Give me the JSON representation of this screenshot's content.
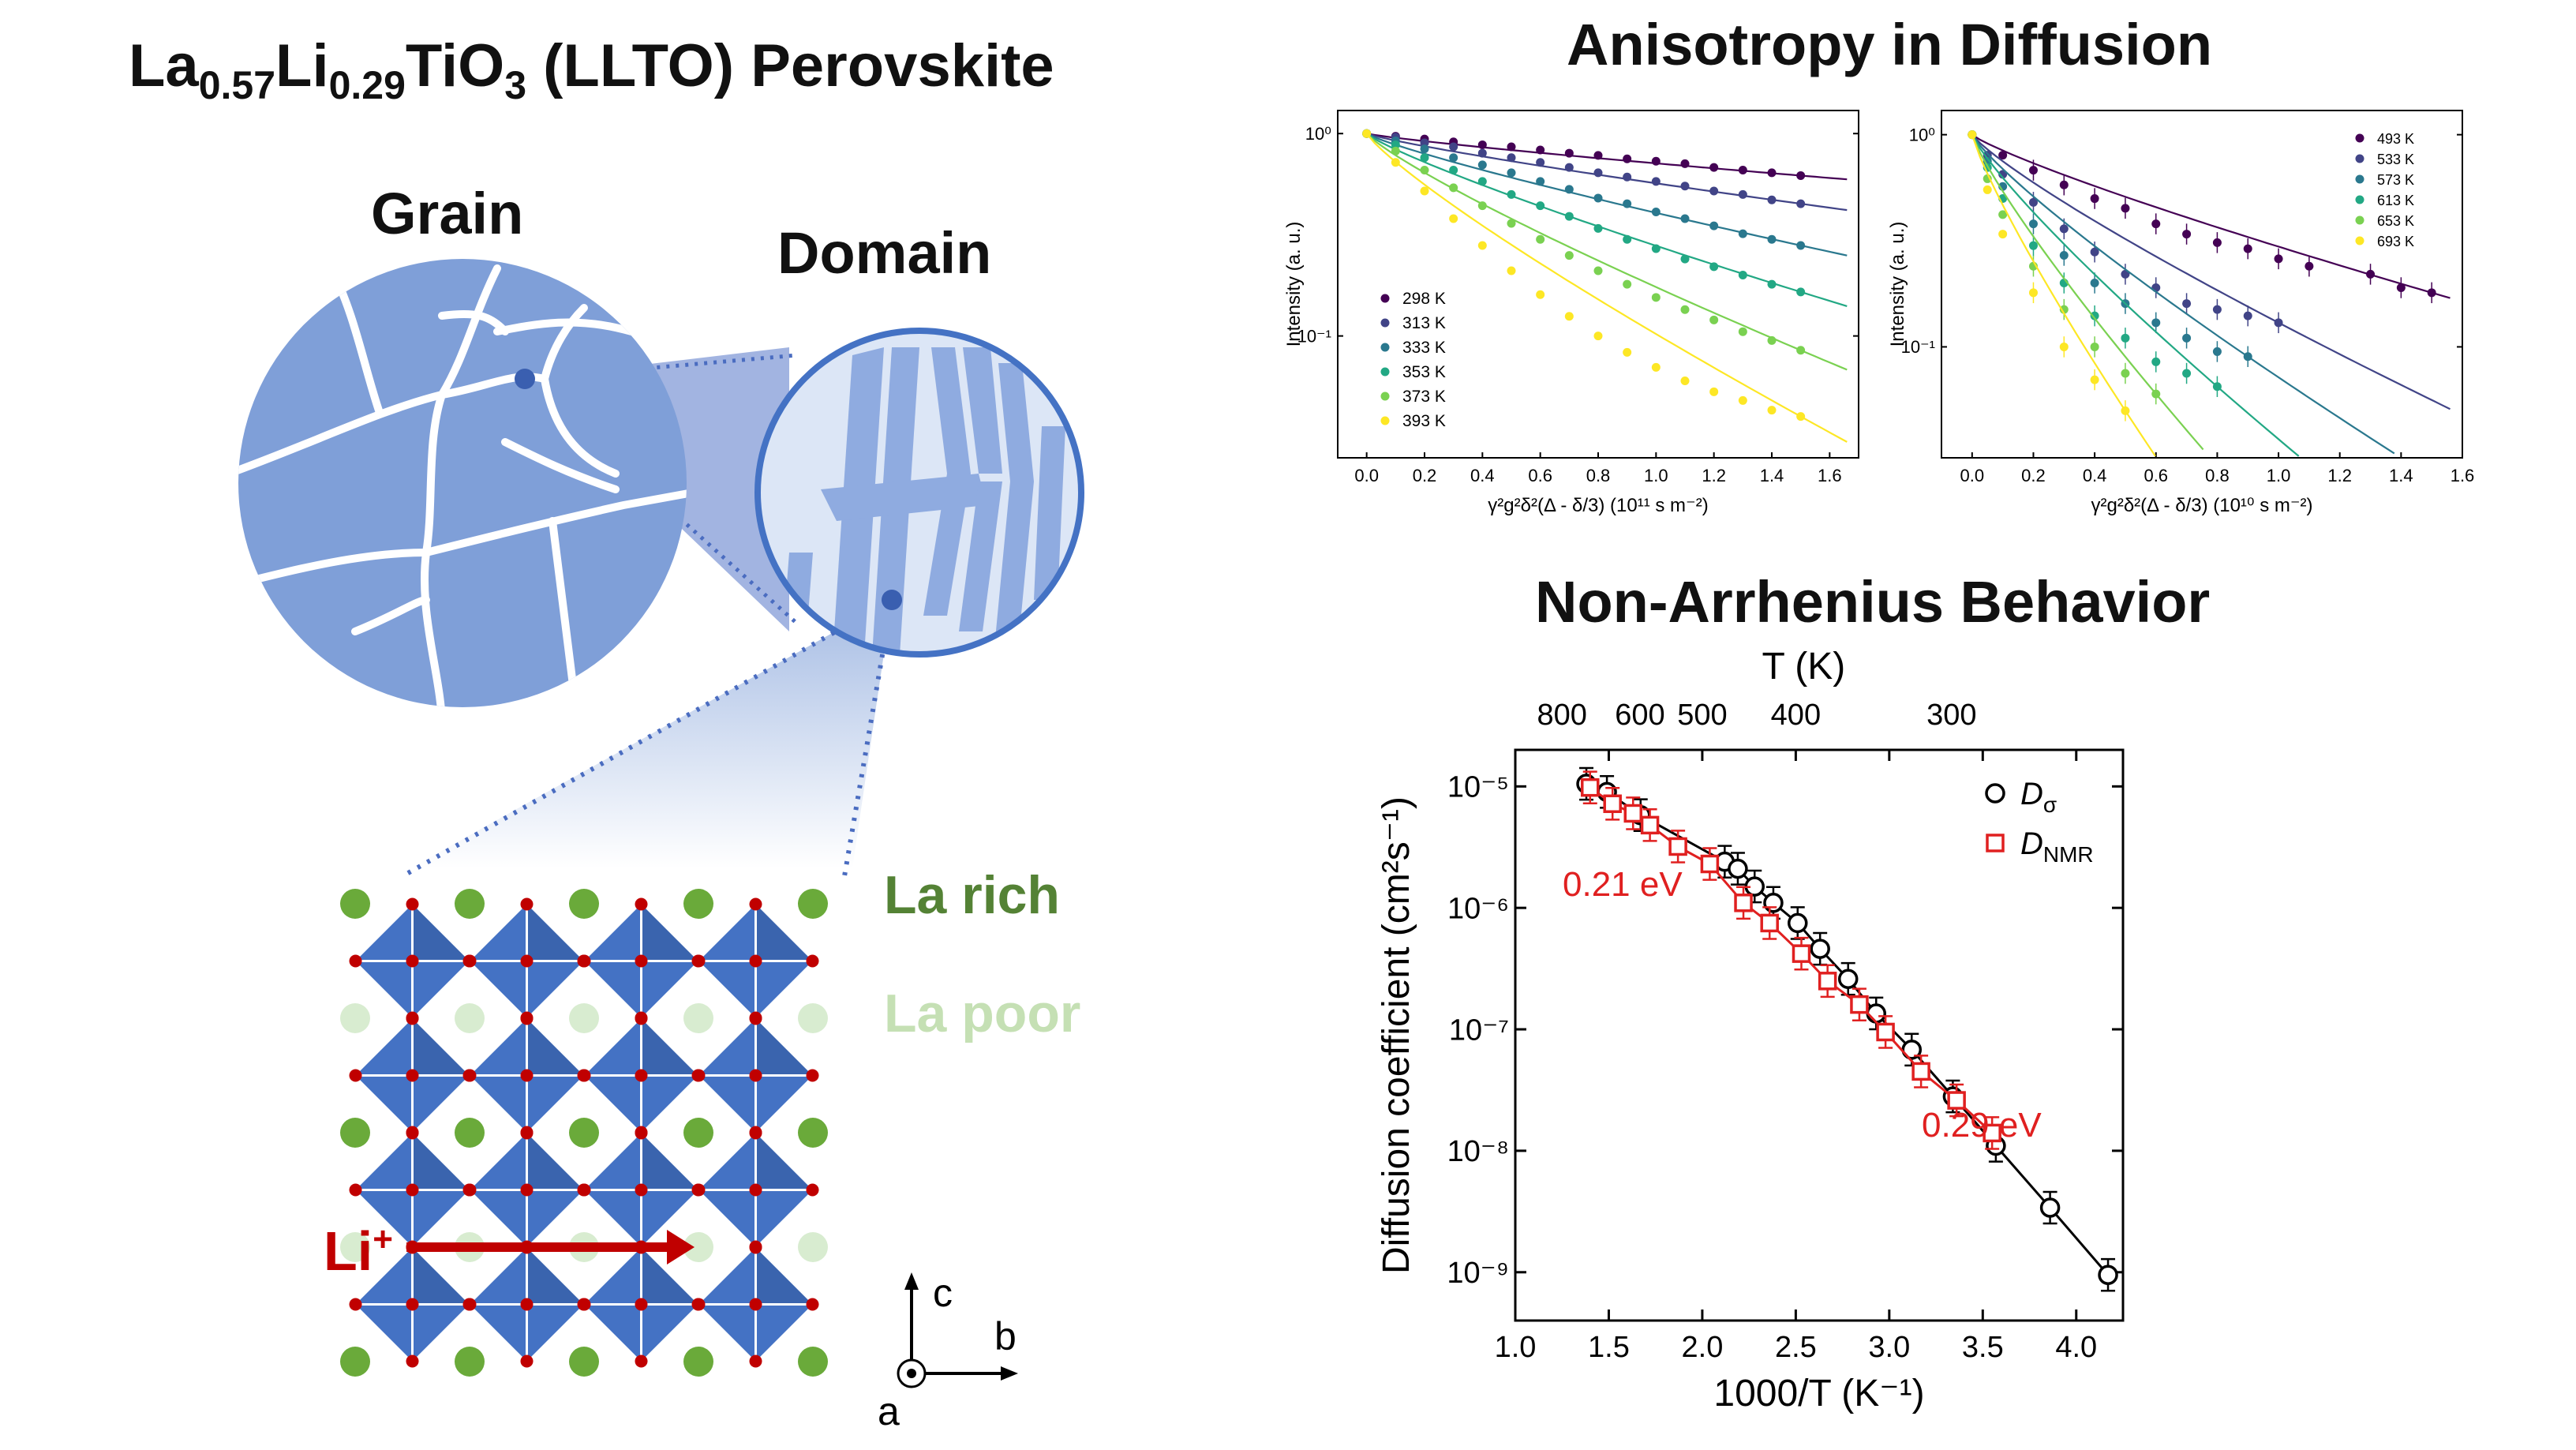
{
  "left": {
    "title": {
      "main1": "La",
      "sub1": "0.57",
      "main2": "Li",
      "sub2": "0.29",
      "main3": "TiO",
      "sub3": "3",
      "main4": " (LLTO) Perovskite"
    },
    "grain_label": "Grain",
    "domain_label": "Domain",
    "la_rich_label": "La rich",
    "la_poor_label": "La poor",
    "li_label": "Li",
    "li_sup": "+",
    "axis_c": "c",
    "axis_b": "b",
    "axis_a": "a",
    "colors": {
      "grain": "#7f9fd8",
      "grain_lines": "#ffffff",
      "octahedron": "#4472c4",
      "la_green": "#6aaa3a",
      "la_poor": "#d8ecd0",
      "arrow": "#c00000",
      "la_rich_text": "#548235",
      "la_poor_text": "#c5e0b4"
    }
  },
  "top_title": "Anisotropy in Diffusion",
  "bottom_title": "Non-Arrhenius Behavior",
  "chart_data": [
    {
      "type": "scatter",
      "yscale": "log",
      "xlabel": "γ²g²δ²(Δ - δ/3) (10¹¹ s m⁻²)",
      "ylabel": "Intensity (a. u.)",
      "xlim": [
        -0.1,
        1.7
      ],
      "ylim": [
        0.025,
        1.3
      ],
      "xticks": [
        "0.0",
        "0.2",
        "0.4",
        "0.6",
        "0.8",
        "1.0",
        "1.2",
        "1.4",
        "1.6"
      ],
      "yticks": [
        {
          "v": 1,
          "t": "10⁰"
        },
        {
          "v": 0.1,
          "t": "10⁻¹"
        }
      ],
      "legend_pos": "bottom-left",
      "series": [
        {
          "name": "298 K",
          "color": "#440154",
          "values": [
            [
              0,
              1
            ],
            [
              0.1,
              0.97
            ],
            [
              0.2,
              0.94
            ],
            [
              0.3,
              0.91
            ],
            [
              0.4,
              0.88
            ],
            [
              0.5,
              0.86
            ],
            [
              0.6,
              0.83
            ],
            [
              0.7,
              0.8
            ],
            [
              0.8,
              0.78
            ],
            [
              0.9,
              0.75
            ],
            [
              1.0,
              0.73
            ],
            [
              1.1,
              0.71
            ],
            [
              1.2,
              0.68
            ],
            [
              1.3,
              0.66
            ],
            [
              1.4,
              0.64
            ],
            [
              1.5,
              0.62
            ]
          ]
        },
        {
          "name": "313 K",
          "color": "#414487",
          "values": [
            [
              0,
              1
            ],
            [
              0.1,
              0.96
            ],
            [
              0.2,
              0.9
            ],
            [
              0.3,
              0.86
            ],
            [
              0.4,
              0.8
            ],
            [
              0.5,
              0.76
            ],
            [
              0.6,
              0.72
            ],
            [
              0.7,
              0.68
            ],
            [
              0.8,
              0.64
            ],
            [
              0.9,
              0.61
            ],
            [
              1.0,
              0.58
            ],
            [
              1.1,
              0.55
            ],
            [
              1.2,
              0.52
            ],
            [
              1.3,
              0.5
            ],
            [
              1.4,
              0.47
            ],
            [
              1.5,
              0.45
            ]
          ]
        },
        {
          "name": "333 K",
          "color": "#2a788e",
          "values": [
            [
              0,
              1
            ],
            [
              0.1,
              0.92
            ],
            [
              0.2,
              0.84
            ],
            [
              0.3,
              0.76
            ],
            [
              0.4,
              0.7
            ],
            [
              0.5,
              0.64
            ],
            [
              0.6,
              0.58
            ],
            [
              0.7,
              0.53
            ],
            [
              0.8,
              0.48
            ],
            [
              0.9,
              0.45
            ],
            [
              1.0,
              0.41
            ],
            [
              1.1,
              0.38
            ],
            [
              1.2,
              0.35
            ],
            [
              1.3,
              0.32
            ],
            [
              1.4,
              0.3
            ],
            [
              1.5,
              0.28
            ]
          ]
        },
        {
          "name": "353 K",
          "color": "#22a884",
          "values": [
            [
              0,
              1
            ],
            [
              0.1,
              0.88
            ],
            [
              0.2,
              0.76
            ],
            [
              0.3,
              0.66
            ],
            [
              0.4,
              0.58
            ],
            [
              0.5,
              0.5
            ],
            [
              0.6,
              0.44
            ],
            [
              0.7,
              0.39
            ],
            [
              0.8,
              0.34
            ],
            [
              0.9,
              0.3
            ],
            [
              1.0,
              0.27
            ],
            [
              1.1,
              0.24
            ],
            [
              1.2,
              0.22
            ],
            [
              1.3,
              0.2
            ],
            [
              1.4,
              0.18
            ],
            [
              1.5,
              0.165
            ]
          ]
        },
        {
          "name": "373 K",
          "color": "#7ad151",
          "values": [
            [
              0,
              1
            ],
            [
              0.1,
              0.82
            ],
            [
              0.2,
              0.66
            ],
            [
              0.3,
              0.54
            ],
            [
              0.4,
              0.44
            ],
            [
              0.5,
              0.36
            ],
            [
              0.6,
              0.3
            ],
            [
              0.7,
              0.25
            ],
            [
              0.8,
              0.21
            ],
            [
              0.9,
              0.18
            ],
            [
              1.0,
              0.155
            ],
            [
              1.1,
              0.135
            ],
            [
              1.2,
              0.12
            ],
            [
              1.3,
              0.105
            ],
            [
              1.4,
              0.095
            ],
            [
              1.5,
              0.085
            ]
          ]
        },
        {
          "name": "393 K",
          "color": "#fde725",
          "values": [
            [
              0,
              1
            ],
            [
              0.1,
              0.72
            ],
            [
              0.2,
              0.52
            ],
            [
              0.3,
              0.38
            ],
            [
              0.4,
              0.28
            ],
            [
              0.5,
              0.21
            ],
            [
              0.6,
              0.16
            ],
            [
              0.7,
              0.125
            ],
            [
              0.8,
              0.1
            ],
            [
              0.9,
              0.083
            ],
            [
              1.0,
              0.07
            ],
            [
              1.1,
              0.06
            ],
            [
              1.2,
              0.053
            ],
            [
              1.3,
              0.048
            ],
            [
              1.4,
              0.043
            ],
            [
              1.5,
              0.04
            ]
          ]
        }
      ]
    },
    {
      "type": "scatter",
      "yscale": "log",
      "xlabel": "γ²g²δ²(Δ - δ/3) (10¹⁰ s m⁻²)",
      "ylabel": "Intensity (a. u.)",
      "xlim": [
        -0.1,
        1.6
      ],
      "ylim": [
        0.03,
        1.3
      ],
      "xticks": [
        "0.0",
        "0.2",
        "0.4",
        "0.6",
        "0.8",
        "1.0",
        "1.2",
        "1.4",
        "1.6"
      ],
      "yticks": [
        {
          "v": 1,
          "t": "10⁰"
        },
        {
          "v": 0.1,
          "t": "10⁻¹"
        }
      ],
      "legend_pos": "top-right",
      "series": [
        {
          "name": "493 K",
          "color": "#440154",
          "values": [
            [
              0,
              1
            ],
            [
              0.1,
              0.8
            ],
            [
              0.2,
              0.68
            ],
            [
              0.3,
              0.58
            ],
            [
              0.4,
              0.5
            ],
            [
              0.5,
              0.45
            ],
            [
              0.6,
              0.38
            ],
            [
              0.7,
              0.34
            ],
            [
              0.8,
              0.31
            ],
            [
              0.9,
              0.29
            ],
            [
              1.0,
              0.26
            ],
            [
              1.1,
              0.24
            ],
            [
              1.3,
              0.22
            ],
            [
              1.4,
              0.19
            ],
            [
              1.5,
              0.18
            ]
          ]
        },
        {
          "name": "533 K",
          "color": "#414487",
          "values": [
            [
              0,
              1
            ],
            [
              0.05,
              0.8
            ],
            [
              0.1,
              0.65
            ],
            [
              0.2,
              0.48
            ],
            [
              0.3,
              0.36
            ],
            [
              0.4,
              0.28
            ],
            [
              0.5,
              0.22
            ],
            [
              0.6,
              0.19
            ],
            [
              0.7,
              0.16
            ],
            [
              0.8,
              0.15
            ],
            [
              0.9,
              0.14
            ],
            [
              1.0,
              0.13
            ]
          ]
        },
        {
          "name": "573 K",
          "color": "#2a788e",
          "values": [
            [
              0,
              1
            ],
            [
              0.05,
              0.75
            ],
            [
              0.1,
              0.57
            ],
            [
              0.2,
              0.38
            ],
            [
              0.3,
              0.27
            ],
            [
              0.4,
              0.2
            ],
            [
              0.5,
              0.16
            ],
            [
              0.6,
              0.13
            ],
            [
              0.7,
              0.11
            ],
            [
              0.8,
              0.095
            ],
            [
              0.9,
              0.09
            ]
          ]
        },
        {
          "name": "613 K",
          "color": "#22a884",
          "values": [
            [
              0,
              1
            ],
            [
              0.05,
              0.7
            ],
            [
              0.1,
              0.5
            ],
            [
              0.2,
              0.3
            ],
            [
              0.3,
              0.2
            ],
            [
              0.4,
              0.14
            ],
            [
              0.5,
              0.11
            ],
            [
              0.6,
              0.085
            ],
            [
              0.7,
              0.075
            ],
            [
              0.8,
              0.065
            ]
          ]
        },
        {
          "name": "653 K",
          "color": "#7ad151",
          "values": [
            [
              0,
              1
            ],
            [
              0.05,
              0.62
            ],
            [
              0.1,
              0.42
            ],
            [
              0.2,
              0.24
            ],
            [
              0.3,
              0.15
            ],
            [
              0.4,
              0.1
            ],
            [
              0.5,
              0.075
            ],
            [
              0.6,
              0.06
            ]
          ]
        },
        {
          "name": "693 K",
          "color": "#fde725",
          "values": [
            [
              0,
              1
            ],
            [
              0.05,
              0.55
            ],
            [
              0.1,
              0.34
            ],
            [
              0.2,
              0.18
            ],
            [
              0.3,
              0.1
            ],
            [
              0.4,
              0.07
            ],
            [
              0.5,
              0.05
            ]
          ]
        }
      ]
    },
    {
      "type": "scatter",
      "yscale": "log",
      "xlabel": "1000/T (K⁻¹)",
      "ylabel": "Diffusion coefficient (cm²s⁻¹)",
      "top_axis_label": "T (K)",
      "top_ticks": [
        "800",
        "600",
        "500",
        "400",
        "300"
      ],
      "top_tick_values": [
        800,
        600,
        500,
        400,
        300
      ],
      "xlim": [
        1.0,
        4.25
      ],
      "ylim": [
        4e-10,
        2e-05
      ],
      "xticks": [
        "1.0",
        "1.5",
        "2.0",
        "2.5",
        "3.0",
        "3.5",
        "4.0"
      ],
      "yticks": [
        {
          "v": 1e-05,
          "t": "10⁻⁵"
        },
        {
          "v": 1e-06,
          "t": "10⁻⁶"
        },
        {
          "v": 1e-07,
          "t": "10⁻⁷"
        },
        {
          "v": 1e-08,
          "t": "10⁻⁸"
        },
        {
          "v": 1e-09,
          "t": "10⁻⁹"
        }
      ],
      "legend_pos": "top-right",
      "annotations": [
        {
          "text": "0.21 eV",
          "color": "#e02020"
        },
        {
          "text": "0.29 eV",
          "color": "#e02020"
        }
      ],
      "series": [
        {
          "name": "Dσ",
          "name_main": "D",
          "name_sub": "σ",
          "marker": "circle",
          "color": "#000000",
          "values": [
            [
              1.38,
              1.05e-05
            ],
            [
              1.49,
              9e-06
            ],
            [
              1.67,
              5.8e-06
            ],
            [
              2.12,
              2.4e-06
            ],
            [
              2.19,
              2.1e-06
            ],
            [
              2.28,
              1.5e-06
            ],
            [
              2.38,
              1.1e-06
            ],
            [
              2.51,
              7.5e-07
            ],
            [
              2.63,
              4.6e-07
            ],
            [
              2.78,
              2.6e-07
            ],
            [
              2.93,
              1.35e-07
            ],
            [
              3.12,
              6.8e-08
            ],
            [
              3.34,
              2.8e-08
            ],
            [
              3.57,
              1.1e-08
            ],
            [
              3.86,
              3.4e-09
            ],
            [
              4.17,
              9.5e-10
            ]
          ]
        },
        {
          "name": "DNMR",
          "name_main": "D",
          "name_sub": "NMR",
          "marker": "square",
          "color": "#e02020",
          "values": [
            [
              1.4,
              9.8e-06
            ],
            [
              1.52,
              7.2e-06
            ],
            [
              1.63,
              6e-06
            ],
            [
              1.72,
              4.8e-06
            ],
            [
              1.87,
              3.2e-06
            ],
            [
              2.04,
              2.3e-06
            ],
            [
              2.22,
              1.1e-06
            ],
            [
              2.36,
              7.5e-07
            ],
            [
              2.53,
              4.2e-07
            ],
            [
              2.67,
              2.5e-07
            ],
            [
              2.84,
              1.6e-07
            ],
            [
              2.98,
              9.5e-08
            ],
            [
              3.17,
              4.5e-08
            ],
            [
              3.36,
              2.6e-08
            ],
            [
              3.55,
              1.4e-08
            ]
          ]
        }
      ]
    }
  ]
}
